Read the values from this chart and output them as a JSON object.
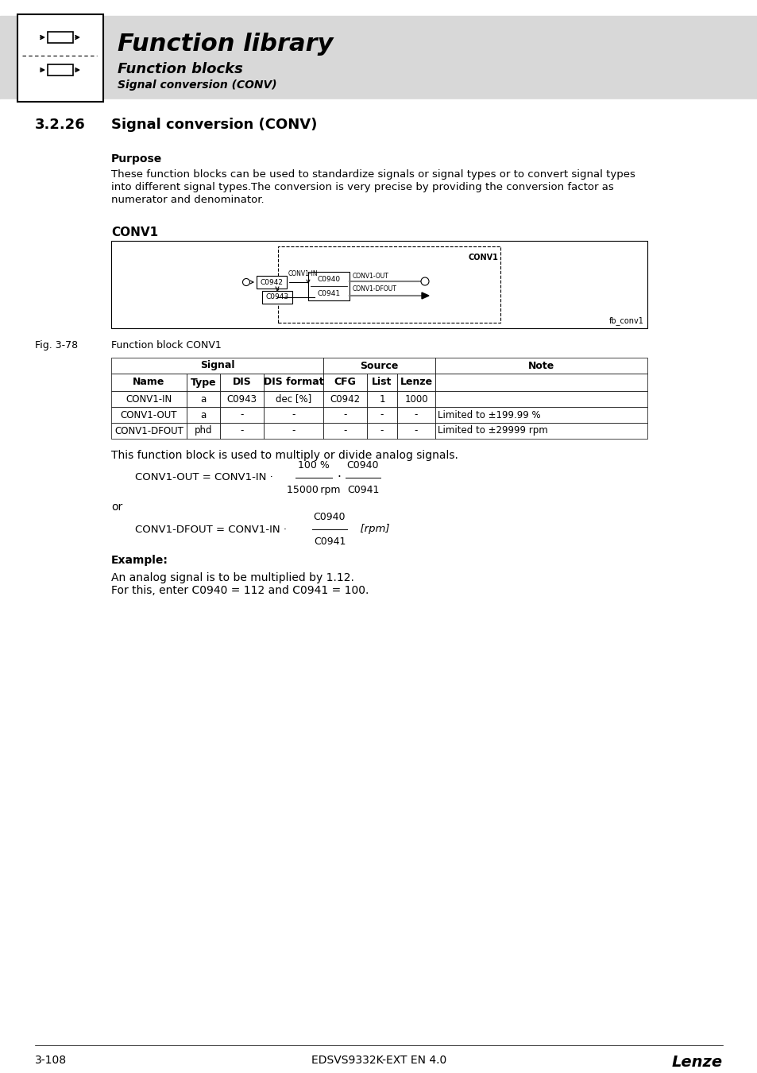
{
  "bg_color": "#ffffff",
  "header_bg": "#d8d8d8",
  "title_main": "Function library",
  "subtitle1": "Function blocks",
  "subtitle2": "Signal conversion (CONV)",
  "section_num": "3.2.26",
  "section_title": "Signal conversion (CONV)",
  "purpose_label": "Purpose",
  "purpose_text": "These function blocks can be used to standardize signals or signal types or to convert signal types\ninto different signal types.The conversion is very precise by providing the conversion factor as\nnumerator and denominator.",
  "conv1_label": "CONV1",
  "fig_label": "Fig. 3-78",
  "fig_caption": "Function block CONV1",
  "fb_label": "fb_conv1",
  "table_rows": [
    [
      "CONV1-IN",
      "a",
      "C0943",
      "dec [%]",
      "C0942",
      "1",
      "1000",
      ""
    ],
    [
      "CONV1-OUT",
      "a",
      "-",
      "-",
      "-",
      "-",
      "-",
      "Limited to ±199.99 %"
    ],
    [
      "CONV1-DFOUT",
      "phd",
      "-",
      "-",
      "-",
      "-",
      "-",
      "Limited to ±29999 rpm"
    ]
  ],
  "block_text": "This function block is used to multiply or divide analog signals.",
  "or_text": "or",
  "example_label": "Example:",
  "example_line1": "An analog signal is to be multiplied by 1.12.",
  "example_line2": "For this, enter C0940 = 112 and C0941 = 100.",
  "footer_left": "3-108",
  "footer_center": "EDSVS9332K-EXT EN 4.0",
  "footer_right": "Lenze"
}
